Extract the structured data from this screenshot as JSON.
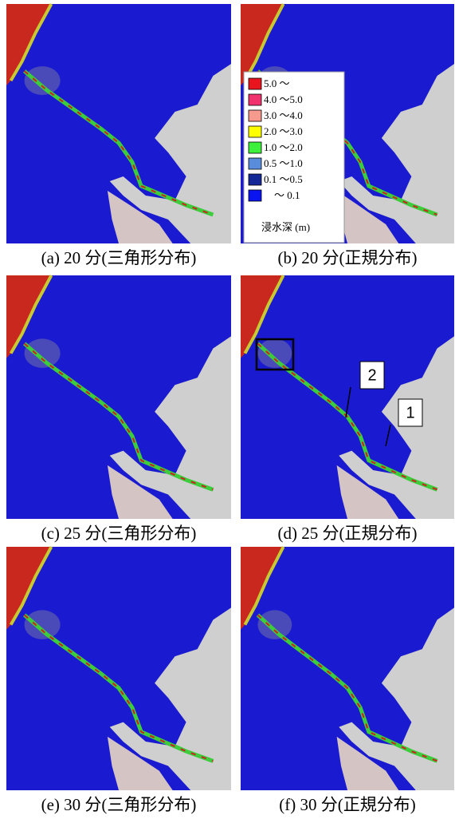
{
  "panels": [
    {
      "caption": "(a) 20 分(三角形分布)"
    },
    {
      "caption": "(b) 20 分(正規分布)"
    },
    {
      "caption": "(c) 25 分(三角形分布)"
    },
    {
      "caption": "(d) 25 分(正規分布)",
      "labels": [
        "2",
        "1"
      ]
    },
    {
      "caption": "(e) 30 分(三角形分布)"
    },
    {
      "caption": "(f) 30 分(正規分布)"
    }
  ],
  "legend": {
    "title": "浸水深 (m)",
    "items": [
      {
        "label": "5.0 ～",
        "color": "#e8141e"
      },
      {
        "label": "4.0 ～5.0",
        "color": "#f0326e"
      },
      {
        "label": "3.0 ～4.0",
        "color": "#f59a8c"
      },
      {
        "label": "2.0 ～3.0",
        "color": "#ffff00"
      },
      {
        "label": "1.0 ～2.0",
        "color": "#3cf03c"
      },
      {
        "label": "0.5 ～1.0",
        "color": "#5a8cdc"
      },
      {
        "label": "0.1 ～0.5",
        "color": "#142896"
      },
      {
        "label": "～ 0.1",
        "color": "#0a14f0"
      }
    ]
  }
}
